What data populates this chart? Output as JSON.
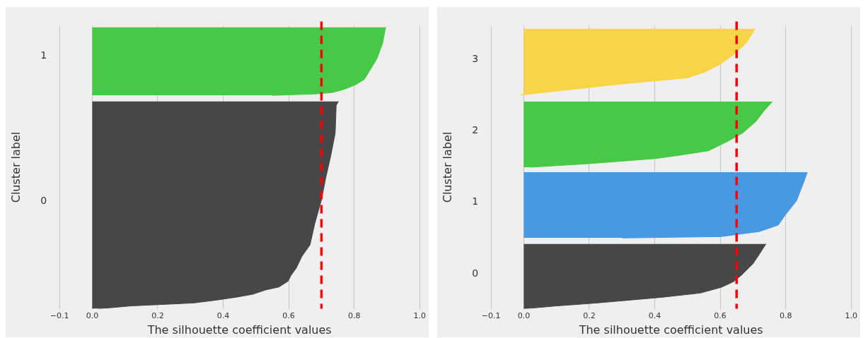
{
  "chart_data": [
    {
      "type": "area",
      "orientation": "horizontal",
      "xlabel": "The silhouette coefficient values",
      "ylabel": "Cluster label",
      "xlim": [
        -0.1,
        1.0
      ],
      "xticks": [
        {
          "value": -0.1,
          "label": "−0.1"
        },
        {
          "value": 0,
          "label": "0.0"
        },
        0.2,
        0.4,
        0.6,
        0.8,
        {
          "value": 1,
          "label": "1.0"
        }
      ],
      "ylim": [
        -0.74,
        1.21
      ],
      "yticks": [
        0,
        1
      ],
      "grid": "x",
      "legend": false,
      "series": [
        {
          "color": "#474747",
          "x": [
            0.69,
            0.66,
            0.47,
            0.32,
            0.16,
            0.01,
            -0.15,
            -0.3,
            -0.38,
            -0.46,
            -0.51,
            -0.55,
            -0.59,
            -0.61,
            -0.64,
            -0.66,
            -0.68,
            -0.7,
            -0.72,
            -0.74
          ],
          "values": [
            0.752,
            0.745,
            0.742,
            0.729,
            0.713,
            0.7,
            0.68,
            0.665,
            0.64,
            0.623,
            0.607,
            0.598,
            0.57,
            0.53,
            0.49,
            0.44,
            0.38,
            0.31,
            0.12,
            0.02
          ]
        },
        {
          "color": "#47c947",
          "x": [
            1.2,
            1.09,
            0.98,
            0.91,
            0.84,
            0.8,
            0.77,
            0.75,
            0.74,
            0.73
          ],
          "values": [
            0.896,
            0.887,
            0.869,
            0.85,
            0.831,
            0.802,
            0.767,
            0.735,
            0.684,
            0.55
          ]
        }
      ],
      "ref_lines": [
        {
          "axis": "x",
          "value": 0.7,
          "color": "#ff0000",
          "line_style": "dashed"
        }
      ]
    },
    {
      "type": "area",
      "orientation": "horizontal",
      "xlabel": "The silhouette coefficient values",
      "ylabel": "Cluster label",
      "xlim": [
        -0.1,
        1.0
      ],
      "xticks": [
        {
          "value": -0.1,
          "label": "−0.1"
        },
        {
          "value": 0,
          "label": "0.0"
        },
        0.2,
        0.4,
        0.6,
        0.8,
        {
          "value": 1,
          "label": "1.0"
        }
      ],
      "ylim": [
        -0.49,
        3.47
      ],
      "yticks": [
        0,
        1,
        2,
        3
      ],
      "grid": "x",
      "legend": false,
      "series": [
        {
          "color": "#474747",
          "x": [
            0.42,
            0.27,
            0.14,
            -0.02,
            -0.11,
            -0.19,
            -0.27,
            -0.33,
            -0.41,
            -0.45,
            -0.49
          ],
          "values": [
            0.74,
            0.719,
            0.7,
            0.665,
            0.641,
            0.603,
            0.539,
            0.42,
            0.22,
            0.1,
            0.0
          ]
        },
        {
          "color": "#4799e1",
          "x": [
            1.42,
            1.28,
            1.02,
            0.83,
            0.68,
            0.59,
            0.52,
            0.5
          ],
          "values": [
            0.866,
            0.855,
            0.833,
            0.8,
            0.777,
            0.719,
            0.603,
            0.3
          ]
        },
        {
          "color": "#47c947",
          "x": [
            2.41,
            2.29,
            2.13,
            1.97,
            1.85,
            1.72,
            1.66,
            1.61,
            1.54,
            1.49
          ],
          "values": [
            0.76,
            0.736,
            0.709,
            0.669,
            0.622,
            0.564,
            0.48,
            0.4,
            0.2,
            0.02
          ]
        },
        {
          "color": "#f8d447",
          "x": [
            3.43,
            3.23,
            3.08,
            2.93,
            2.82,
            2.74,
            2.65,
            2.55,
            2.5
          ],
          "values": [
            0.707,
            0.68,
            0.645,
            0.6,
            0.552,
            0.5,
            0.29,
            0.09,
            -0.01
          ]
        }
      ],
      "ref_lines": [
        {
          "axis": "x",
          "value": 0.65,
          "color": "#ff0000",
          "line_style": "dashed"
        }
      ]
    }
  ]
}
